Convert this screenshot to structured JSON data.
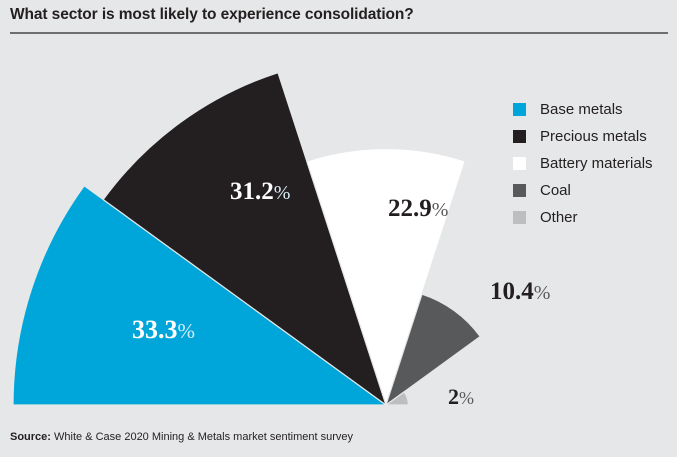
{
  "title": "What sector is most likely to experience consolidation?",
  "source": {
    "label": "Source:",
    "text": "White & Case 2020 Mining & Metals market sentiment survey"
  },
  "chart_data": {
    "type": "pie",
    "subtype": "polar-area (equal angles, radius proportional to value)",
    "title": "What sector is most likely to experience consolidation?",
    "unit": "%",
    "categories": [
      "Base metals",
      "Precious metals",
      "Battery materials",
      "Coal",
      "Other"
    ],
    "values": [
      33.3,
      31.2,
      22.9,
      10.4,
      2
    ],
    "value_labels": [
      "33.3",
      "31.2",
      "22.9",
      "10.4",
      "2"
    ],
    "colors": [
      "#00a6da",
      "#231f20",
      "#ffffff",
      "#58595b",
      "#bcbec0"
    ],
    "label_colors": [
      "#ffffff",
      "#ffffff",
      "#231f20",
      "#231f20",
      "#231f20"
    ],
    "legend_position": "right",
    "source": "White & Case 2020 Mining & Metals market sentiment survey"
  }
}
